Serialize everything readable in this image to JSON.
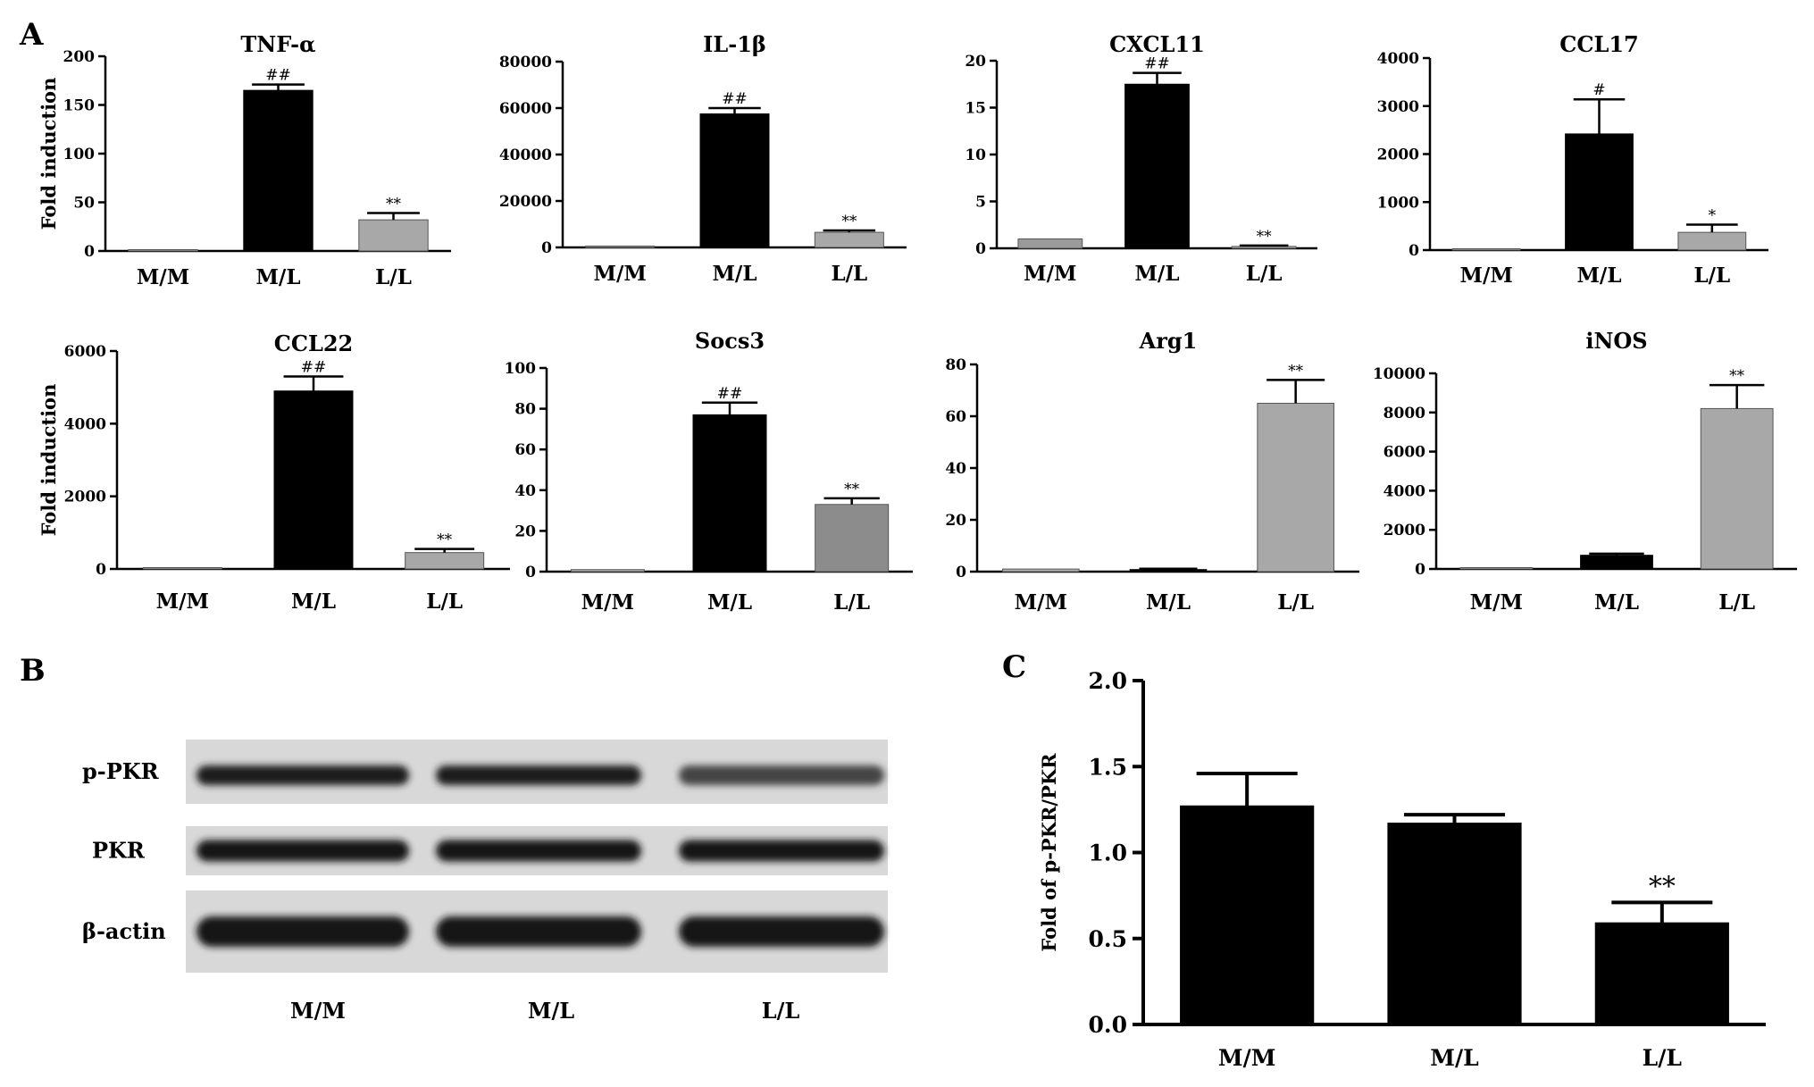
{
  "figure": {
    "panel_letters": [
      "A",
      "B",
      "C"
    ]
  },
  "chart_data": [
    {
      "id": "tnf",
      "type": "bar",
      "title": "TNF-α",
      "ylabel": "Fold induction",
      "ylim": [
        0,
        200
      ],
      "yticks": [
        0,
        50,
        100,
        150,
        200
      ],
      "categories": [
        "M/M",
        "M/L",
        "L/L"
      ],
      "values": [
        1,
        165,
        32
      ],
      "errors": [
        0,
        6,
        7
      ],
      "annotations": [
        "",
        "##",
        "**"
      ],
      "colors": [
        "#b0b0b0",
        "#000000",
        "#a8a8a8"
      ]
    },
    {
      "id": "il1b",
      "type": "bar",
      "title": "IL-1β",
      "ylabel": "",
      "ylim": [
        0,
        80000
      ],
      "yticks": [
        0,
        20000,
        40000,
        60000,
        80000
      ],
      "categories": [
        "M/M",
        "M/L",
        "L/L"
      ],
      "values": [
        0,
        57500,
        6500
      ],
      "errors": [
        0,
        2500,
        800
      ],
      "annotations": [
        "",
        "##",
        "**"
      ],
      "colors": [
        "#b0b0b0",
        "#000000",
        "#a8a8a8"
      ]
    },
    {
      "id": "cxcl11",
      "type": "bar",
      "title": "CXCL11",
      "ylabel": "",
      "ylim": [
        0,
        20
      ],
      "yticks": [
        0,
        5,
        10,
        15,
        20
      ],
      "categories": [
        "M/M",
        "M/L",
        "L/L"
      ],
      "values": [
        1.0,
        17.5,
        0.2
      ],
      "errors": [
        0,
        1.2,
        0.1
      ],
      "annotations": [
        "",
        "##",
        "**"
      ],
      "colors": [
        "#9a9a9a",
        "#000000",
        "#a8a8a8"
      ]
    },
    {
      "id": "ccl17",
      "type": "bar",
      "title": "CCL17",
      "ylabel": "",
      "ylim": [
        0,
        4000
      ],
      "yticks": [
        0,
        1000,
        2000,
        3000,
        4000
      ],
      "categories": [
        "M/M",
        "M/L",
        "L/L"
      ],
      "values": [
        0,
        2420,
        370
      ],
      "errors": [
        0,
        720,
        160
      ],
      "annotations": [
        "",
        "#",
        "*"
      ],
      "colors": [
        "#b0b0b0",
        "#000000",
        "#a8a8a8"
      ]
    },
    {
      "id": "ccl22",
      "type": "bar",
      "title": "CCL22",
      "ylabel": "Fold induction",
      "ylim": [
        0,
        6000
      ],
      "yticks": [
        0,
        2000,
        4000,
        6000
      ],
      "categories": [
        "M/M",
        "M/L",
        "L/L"
      ],
      "values": [
        0,
        4900,
        450
      ],
      "errors": [
        0,
        400,
        100
      ],
      "annotations": [
        "",
        "##",
        "**"
      ],
      "colors": [
        "#b0b0b0",
        "#000000",
        "#a8a8a8"
      ]
    },
    {
      "id": "socs3",
      "type": "bar",
      "title": "Socs3",
      "ylabel": "",
      "ylim": [
        0,
        100
      ],
      "yticks": [
        0,
        20,
        40,
        60,
        80,
        100
      ],
      "categories": [
        "M/M",
        "M/L",
        "L/L"
      ],
      "values": [
        1,
        77,
        33
      ],
      "errors": [
        0,
        6,
        3
      ],
      "annotations": [
        "",
        "##",
        "**"
      ],
      "colors": [
        "#b0b0b0",
        "#000000",
        "#8c8c8c"
      ]
    },
    {
      "id": "arg1",
      "type": "bar",
      "title": "Arg1",
      "ylabel": "",
      "ylim": [
        0,
        80
      ],
      "yticks": [
        0,
        20,
        40,
        60,
        80
      ],
      "categories": [
        "M/M",
        "M/L",
        "L/L"
      ],
      "values": [
        1,
        0.8,
        65
      ],
      "errors": [
        0,
        0.3,
        9
      ],
      "annotations": [
        "",
        "",
        "**"
      ],
      "colors": [
        "#b0b0b0",
        "#000000",
        "#a8a8a8"
      ]
    },
    {
      "id": "inos",
      "type": "bar",
      "title": "iNOS",
      "ylabel": "",
      "ylim": [
        0,
        10000
      ],
      "yticks": [
        0,
        2000,
        4000,
        6000,
        8000,
        10000
      ],
      "categories": [
        "M/M",
        "M/L",
        "L/L"
      ],
      "values": [
        0,
        700,
        8200
      ],
      "errors": [
        0,
        80,
        1200
      ],
      "annotations": [
        "",
        "",
        "**"
      ],
      "colors": [
        "#b0b0b0",
        "#000000",
        "#a8a8a8"
      ]
    },
    {
      "id": "pkr",
      "type": "bar",
      "title": "",
      "ylabel": "Fold of p-PKR/PKR",
      "ylim": [
        0,
        2.0
      ],
      "yticks": [
        "0.0",
        "0.5",
        "1.0",
        "1.5",
        "2.0"
      ],
      "categories": [
        "M/M",
        "M/L",
        "L/L"
      ],
      "values": [
        1.27,
        1.17,
        0.59
      ],
      "errors": [
        0.19,
        0.05,
        0.12
      ],
      "annotations": [
        "",
        "",
        "**"
      ],
      "colors": [
        "#000000",
        "#000000",
        "#000000"
      ]
    }
  ],
  "blot": {
    "rows": [
      {
        "label": "p-PKR",
        "intensity": [
          0.95,
          0.95,
          0.6
        ]
      },
      {
        "label": "PKR",
        "intensity": [
          1.0,
          1.0,
          1.0
        ]
      },
      {
        "label": "β-actin",
        "intensity": [
          1.0,
          1.0,
          1.0
        ]
      }
    ],
    "lanes": [
      "M/M",
      "M/L",
      "L/L"
    ]
  }
}
